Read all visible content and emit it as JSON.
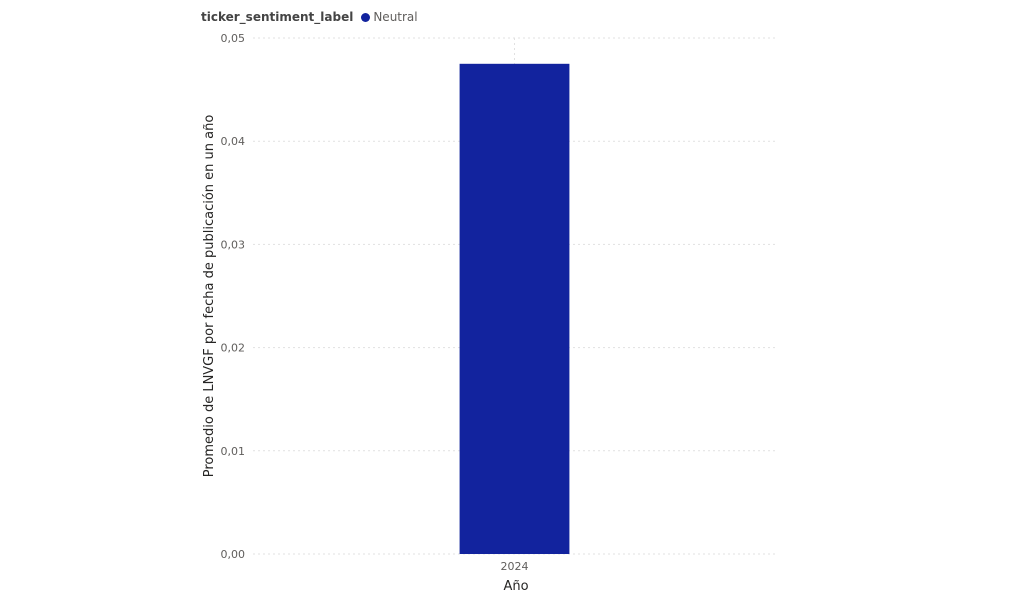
{
  "legend": {
    "title": "ticker_sentiment_label",
    "items": [
      {
        "label": "Neutral",
        "color": "#12239E"
      }
    ]
  },
  "chart_data": {
    "type": "bar",
    "categories": [
      "2024"
    ],
    "series": [
      {
        "name": "Neutral",
        "color": "#12239E",
        "values": [
          0.0475
        ]
      }
    ],
    "xlabel": "Año",
    "ylabel": "Promedio de LNVGF por fecha de publicación en un año",
    "ylim": [
      0,
      0.05
    ],
    "yticks": [
      0,
      0.01,
      0.02,
      0.03,
      0.04,
      0.05
    ],
    "ytick_labels": [
      "0,00",
      "0,01",
      "0,02",
      "0,03",
      "0,04",
      "0,05"
    ],
    "grid": true,
    "legend_position": "top-left"
  }
}
